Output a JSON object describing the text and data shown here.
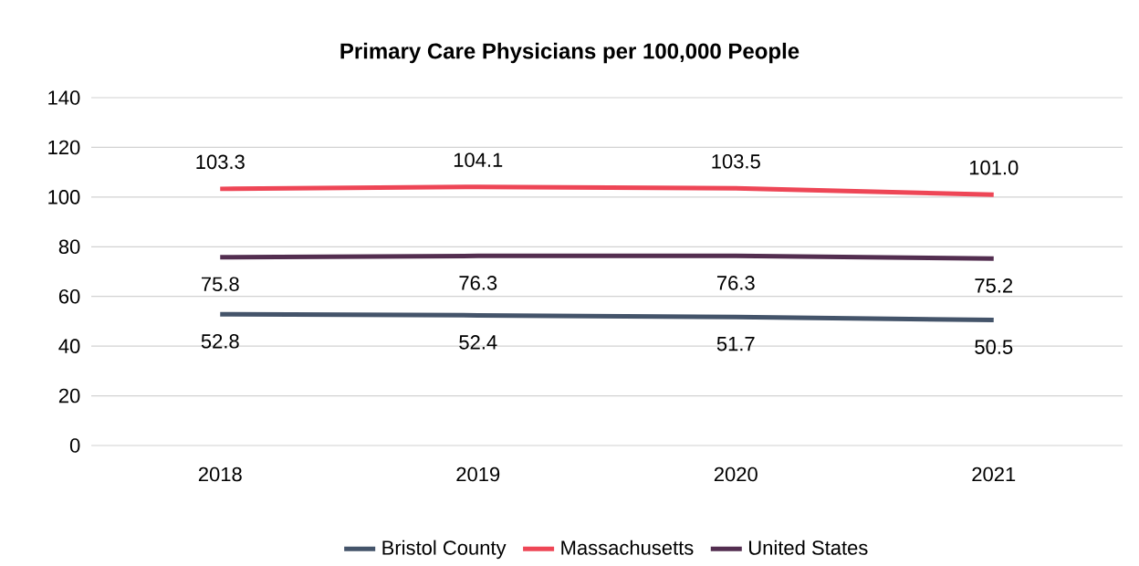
{
  "chart_data": {
    "type": "line",
    "title": "Primary Care Physicians per 100,000 People",
    "categories": [
      "2018",
      "2019",
      "2020",
      "2021"
    ],
    "series": [
      {
        "name": "Bristol County",
        "color": "#44546a",
        "values": [
          52.8,
          52.4,
          51.7,
          50.5
        ],
        "value_labels": [
          "52.8",
          "52.4",
          "51.7",
          "50.5"
        ]
      },
      {
        "name": "Massachusetts",
        "color": "#ee4656",
        "values": [
          103.3,
          104.1,
          103.5,
          101.0
        ],
        "value_labels": [
          "103.3",
          "104.1",
          "103.5",
          "101.0"
        ]
      },
      {
        "name": "United States",
        "color": "#532e50",
        "values": [
          75.8,
          76.3,
          76.3,
          75.2
        ],
        "value_labels": [
          "75.8",
          "76.3",
          "76.3",
          "75.2"
        ]
      }
    ],
    "ylim": [
      0,
      140
    ],
    "yticks": [
      0,
      20,
      40,
      60,
      80,
      100,
      120,
      140
    ],
    "grid": "y",
    "legend": "bottom",
    "marker": "none",
    "line_style": "solid"
  }
}
